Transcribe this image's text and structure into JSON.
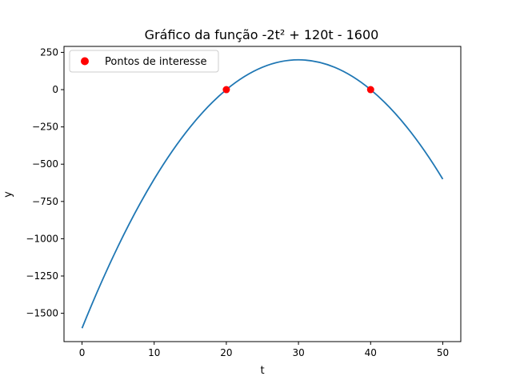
{
  "chart_data": {
    "type": "line",
    "title": "Gráfico da função -2t² + 120t - 1600",
    "xlabel": "t",
    "ylabel": "y",
    "xlim": [
      -2.5,
      52.5
    ],
    "ylim": [
      -1690,
      290
    ],
    "xticks": [
      0,
      10,
      20,
      30,
      40,
      50
    ],
    "xtick_labels": [
      "0",
      "10",
      "20",
      "30",
      "40",
      "50"
    ],
    "yticks": [
      250,
      0,
      -250,
      -500,
      -750,
      -1000,
      -1250,
      -1500
    ],
    "ytick_labels": [
      "250",
      "0",
      "−250",
      "−500",
      "−750",
      "−1000",
      "−1250",
      "−1500"
    ],
    "grid": false,
    "legend_position": "top-left",
    "series": [
      {
        "type": "line",
        "color": "#1f77b4",
        "function": "-2t^2 + 120t - 1600",
        "x_range": [
          0,
          50
        ],
        "points": [
          [
            0,
            -1600
          ],
          [
            5,
            -1050
          ],
          [
            10,
            -600
          ],
          [
            15,
            -250
          ],
          [
            20,
            0
          ],
          [
            25,
            150
          ],
          [
            30,
            200
          ],
          [
            35,
            150
          ],
          [
            40,
            0
          ],
          [
            45,
            -250
          ],
          [
            50,
            -600
          ]
        ]
      },
      {
        "type": "scatter",
        "name": "Pontos de interesse",
        "color": "#ff0000",
        "points": [
          [
            20,
            0
          ],
          [
            40,
            0
          ]
        ]
      }
    ]
  }
}
